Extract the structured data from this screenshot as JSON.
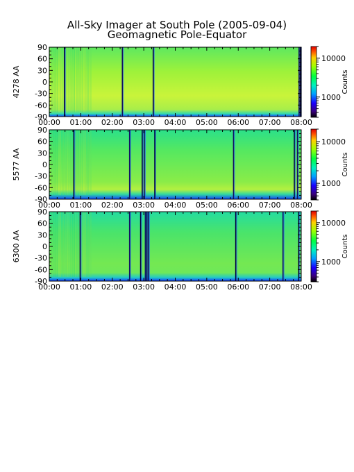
{
  "title": "All-Sky Imager at South Pole (2005-09-04)",
  "subtitle": "Geomagnetic Pole-Equator",
  "chart_data": {
    "type": "heatmap",
    "x_ticks": [
      "00:00",
      "01:00",
      "02:00",
      "03:00",
      "04:00",
      "05:00",
      "06:00",
      "07:00",
      "08:00"
    ],
    "x_range_hours": [
      0,
      8
    ],
    "y_ticks": [
      90,
      60,
      30,
      0,
      -30,
      -60,
      -90
    ],
    "y_range": [
      -90,
      90
    ],
    "colorbar": {
      "label": "Counts",
      "scale": "log",
      "ticks": [
        1000,
        10000
      ],
      "tick_labels": [
        "1000",
        "10000"
      ]
    },
    "panels": [
      {
        "ylabel": "4278 AA",
        "typical_counts": 11000,
        "gaps_hours": [
          0.48,
          2.32,
          3.3,
          7.93,
          7.97
        ],
        "colorbar_range": [
          300,
          20000
        ]
      },
      {
        "ylabel": "5577 AA",
        "typical_counts": 7500,
        "gaps_hours": [
          0.78,
          2.55,
          2.95,
          3.02,
          3.35,
          5.85,
          7.78,
          7.88
        ],
        "colorbar_range": [
          400,
          20000
        ]
      },
      {
        "ylabel": "6300 AA",
        "typical_counts": 7000,
        "gaps_hours": [
          0.98,
          2.55,
          2.9,
          3.05,
          3.1,
          3.15,
          5.92,
          7.42,
          7.92
        ],
        "colorbar_range": [
          300,
          20000
        ]
      }
    ]
  }
}
